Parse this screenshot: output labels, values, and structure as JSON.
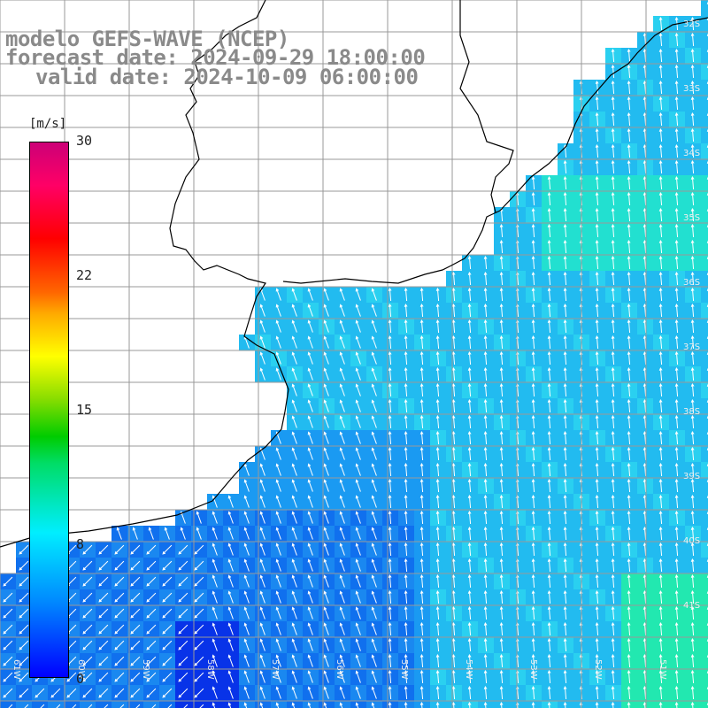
{
  "title": {
    "line1": "modelo GEFS-WAVE (NCEP)",
    "line2": "forecast date: 2024-09-29 18:00:00",
    "line3": "valid date: 2024-10-09 06:00:00"
  },
  "colorbar": {
    "unit": "[m/s]",
    "ticks": [
      "30",
      "22",
      "15",
      "8",
      "0"
    ],
    "colors": [
      "#0000ff",
      "#0088ff",
      "#00eeff",
      "#00cc00",
      "#ffff00",
      "#ff0000",
      "#cc0077"
    ]
  },
  "lat_labels": [
    "32S",
    "33S",
    "34S",
    "35S",
    "36S",
    "37S",
    "38S",
    "39S",
    "40S",
    "41S"
  ],
  "lon_labels": [
    "61W",
    "60W",
    "59W",
    "58W",
    "57W",
    "56W",
    "55W",
    "54W",
    "53W",
    "52W",
    "51W"
  ],
  "colors": {
    "ocean_main": "#22bbf0",
    "ocean_low": "#1066ee",
    "land": "#ffffff",
    "grid": "#999999"
  }
}
